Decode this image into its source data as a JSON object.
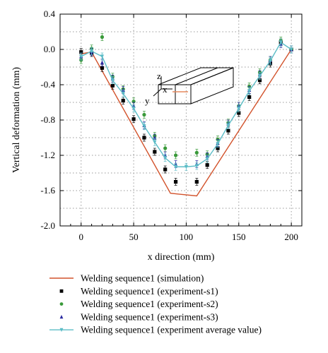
{
  "chart_data": {
    "type": "line",
    "title": "",
    "xlabel": "x direction (mm)",
    "ylabel": "Vertical deformation (mm)",
    "xlim": [
      -20,
      210
    ],
    "ylim": [
      -2.0,
      0.4
    ],
    "x_ticks": [
      0,
      50,
      100,
      150,
      200
    ],
    "y_ticks": [
      0.4,
      0.0,
      -0.4,
      -0.8,
      -1.2,
      -1.6,
      -2.0
    ],
    "y_tick_labels": [
      "0.4",
      "0.0",
      "-0.4",
      "-0.8",
      "-1.2",
      "-1.6",
      "-2.0"
    ],
    "grid": true,
    "legend_placement": "below",
    "inset_labels": {
      "z": "z",
      "x": "x",
      "y": "y"
    },
    "series": [
      {
        "name": "Welding sequence1 (simulation)",
        "kind": "line",
        "color": "#d2522b",
        "x": [
          0,
          10,
          85,
          110,
          200
        ],
        "y": [
          -0.05,
          -0.03,
          -1.63,
          -1.66,
          0.0
        ]
      },
      {
        "name": "Welding sequence1 (experiment-s1)",
        "kind": "points",
        "marker": "square",
        "color": "#000000",
        "x": [
          0,
          10,
          20,
          30,
          40,
          50,
          60,
          70,
          80,
          90,
          110,
          120,
          130,
          140,
          150,
          160,
          170,
          180,
          190,
          200
        ],
        "y": [
          -0.03,
          -0.04,
          -0.21,
          -0.41,
          -0.58,
          -0.79,
          -1.0,
          -1.16,
          -1.36,
          -1.5,
          -1.5,
          -1.31,
          -1.12,
          -0.92,
          -0.72,
          -0.54,
          -0.35,
          -0.16,
          0.08,
          0.0
        ]
      },
      {
        "name": "Welding sequence1 (experiment-s2)",
        "kind": "points",
        "marker": "circle",
        "color": "#3a9a3a",
        "x": [
          0,
          10,
          20,
          30,
          40,
          50,
          60,
          70,
          80,
          90,
          110,
          120,
          130,
          140,
          150,
          160,
          170,
          180,
          190,
          200
        ],
        "y": [
          -0.12,
          0.01,
          0.14,
          -0.31,
          -0.45,
          -0.59,
          -0.74,
          -0.98,
          -1.12,
          -1.2,
          -1.17,
          -1.19,
          -1.02,
          -0.83,
          -0.64,
          -0.42,
          -0.26,
          -0.12,
          0.1,
          0.0
        ]
      },
      {
        "name": "Welding sequence1 (experiment-s3)",
        "kind": "points",
        "marker": "triangle",
        "color": "#2a2aa0",
        "x": [
          0,
          10,
          20,
          30,
          40,
          50,
          60,
          70,
          80,
          90,
          110,
          120,
          130,
          140,
          150,
          160,
          170,
          180,
          190,
          200
        ],
        "y": [
          -0.08,
          -0.03,
          -0.15,
          -0.33,
          -0.46,
          -0.64,
          -0.86,
          -1.0,
          -1.2,
          -1.3,
          -1.3,
          -1.21,
          -1.06,
          -0.84,
          -0.64,
          -0.46,
          -0.28,
          -0.12,
          0.06,
          0.0
        ]
      },
      {
        "name": "Welding sequence1 (experiment average value)",
        "kind": "line-markers",
        "marker": "triangle-down",
        "color": "#5bbcc6",
        "x": [
          0,
          10,
          20,
          30,
          40,
          50,
          60,
          70,
          80,
          90,
          100,
          110,
          120,
          130,
          140,
          150,
          160,
          170,
          180,
          190,
          200
        ],
        "y": [
          -0.08,
          -0.02,
          -0.08,
          -0.35,
          -0.5,
          -0.67,
          -0.87,
          -1.05,
          -1.23,
          -1.33,
          -1.33,
          -1.32,
          -1.24,
          -1.07,
          -0.86,
          -0.67,
          -0.47,
          -0.3,
          -0.13,
          0.08,
          0.0
        ]
      }
    ]
  }
}
